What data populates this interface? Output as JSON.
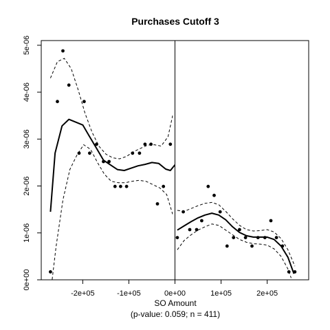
{
  "chart_data": {
    "type": "scatter",
    "title": "Purchases Cutoff 3",
    "xlabel": "SO Amount",
    "subtitle": "(p-value: 0.059; n = 411)",
    "ylabel": "",
    "xlim": [
      -290000,
      290000
    ],
    "ylim": [
      0,
      5.1e-06
    ],
    "cutoff": 0,
    "x_ticks": [
      {
        "value": -200000,
        "label": "-2e+05"
      },
      {
        "value": -100000,
        "label": "-1e+05"
      },
      {
        "value": 0,
        "label": "0e+00"
      },
      {
        "value": 100000,
        "label": "1e+05"
      },
      {
        "value": 200000,
        "label": "2e+05"
      }
    ],
    "y_ticks": [
      {
        "value": 0,
        "label": "0e+00"
      },
      {
        "value": 1e-06,
        "label": "1e-06"
      },
      {
        "value": 2e-06,
        "label": "2e-06"
      },
      {
        "value": 3e-06,
        "label": "3e-06"
      },
      {
        "value": 4e-06,
        "label": "4e-06"
      },
      {
        "value": 5e-06,
        "label": "5e-06"
      }
    ],
    "points": [
      {
        "x": -270000,
        "y": 1.7e-07
      },
      {
        "x": -255000,
        "y": 3.8e-06
      },
      {
        "x": -243000,
        "y": 4.88e-06
      },
      {
        "x": -230000,
        "y": 4.15e-06
      },
      {
        "x": -208000,
        "y": 2.7e-06
      },
      {
        "x": -197000,
        "y": 3.8e-06
      },
      {
        "x": -185000,
        "y": 2.7e-06
      },
      {
        "x": -170000,
        "y": 2.89e-06
      },
      {
        "x": -155000,
        "y": 2.52e-06
      },
      {
        "x": -143000,
        "y": 2.52e-06
      },
      {
        "x": -130000,
        "y": 1.99e-06
      },
      {
        "x": -118000,
        "y": 1.99e-06
      },
      {
        "x": -105000,
        "y": 1.99e-06
      },
      {
        "x": -92000,
        "y": 2.7e-06
      },
      {
        "x": -77000,
        "y": 2.7e-06
      },
      {
        "x": -65000,
        "y": 2.89e-06
      },
      {
        "x": -52000,
        "y": 2.89e-06
      },
      {
        "x": -38000,
        "y": 1.62e-06
      },
      {
        "x": -25000,
        "y": 1.99e-06
      },
      {
        "x": -10000,
        "y": 2.89e-06
      },
      {
        "x": 5000,
        "y": 9e-07
      },
      {
        "x": 18000,
        "y": 1.45e-06
      },
      {
        "x": 32000,
        "y": 1.07e-06
      },
      {
        "x": 47000,
        "y": 1.07e-06
      },
      {
        "x": 58000,
        "y": 1.26e-06
      },
      {
        "x": 72000,
        "y": 1.99e-06
      },
      {
        "x": 85000,
        "y": 1.8e-06
      },
      {
        "x": 98000,
        "y": 1.45e-06
      },
      {
        "x": 113000,
        "y": 7.2e-07
      },
      {
        "x": 127000,
        "y": 9e-07
      },
      {
        "x": 140000,
        "y": 1.07e-06
      },
      {
        "x": 153000,
        "y": 9e-07
      },
      {
        "x": 167000,
        "y": 7.2e-07
      },
      {
        "x": 180000,
        "y": 9e-07
      },
      {
        "x": 195000,
        "y": 9e-07
      },
      {
        "x": 208000,
        "y": 1.26e-06
      },
      {
        "x": 220000,
        "y": 9e-07
      },
      {
        "x": 233000,
        "y": 7.2e-07
      },
      {
        "x": 247000,
        "y": 1.7e-07
      },
      {
        "x": 260000,
        "y": 1.7e-07
      }
    ],
    "series": [
      {
        "style": "solid",
        "segments": [
          [
            [
              -270000,
              1.45e-06
            ],
            [
              -260000,
              2.7e-06
            ],
            [
              -245000,
              3.28e-06
            ],
            [
              -230000,
              3.42e-06
            ],
            [
              -215000,
              3.36e-06
            ],
            [
              -200000,
              3.3e-06
            ],
            [
              -185000,
              3.05e-06
            ],
            [
              -170000,
              2.8e-06
            ],
            [
              -155000,
              2.55e-06
            ],
            [
              -140000,
              2.45e-06
            ],
            [
              -125000,
              2.35e-06
            ],
            [
              -110000,
              2.33e-06
            ],
            [
              -95000,
              2.38e-06
            ],
            [
              -80000,
              2.43e-06
            ],
            [
              -65000,
              2.46e-06
            ],
            [
              -50000,
              2.5e-06
            ],
            [
              -35000,
              2.48e-06
            ],
            [
              -20000,
              2.36e-06
            ],
            [
              -10000,
              2.33e-06
            ],
            [
              0,
              2.45e-06
            ]
          ],
          [
            [
              5000,
              1.06e-06
            ],
            [
              20000,
              1.15e-06
            ],
            [
              35000,
              1.24e-06
            ],
            [
              50000,
              1.32e-06
            ],
            [
              65000,
              1.38e-06
            ],
            [
              80000,
              1.42e-06
            ],
            [
              95000,
              1.38e-06
            ],
            [
              110000,
              1.28e-06
            ],
            [
              125000,
              1.13e-06
            ],
            [
              140000,
              1.01e-06
            ],
            [
              155000,
              9.4e-07
            ],
            [
              170000,
              9.1e-07
            ],
            [
              185000,
              9.1e-07
            ],
            [
              200000,
              9.1e-07
            ],
            [
              215000,
              8.6e-07
            ],
            [
              230000,
              7.2e-07
            ],
            [
              245000,
              4.8e-07
            ],
            [
              258000,
              1.3e-07
            ]
          ]
        ]
      },
      {
        "style": "dashed",
        "segments": [
          [
            [
              -270000,
              4.3e-06
            ],
            [
              -255000,
              4.65e-06
            ],
            [
              -240000,
              4.72e-06
            ],
            [
              -225000,
              4.5e-06
            ],
            [
              -210000,
              4.05e-06
            ],
            [
              -195000,
              3.55e-06
            ],
            [
              -180000,
              3.15e-06
            ],
            [
              -165000,
              2.85e-06
            ],
            [
              -150000,
              2.68e-06
            ],
            [
              -135000,
              2.6e-06
            ],
            [
              -120000,
              2.58e-06
            ],
            [
              -105000,
              2.63e-06
            ],
            [
              -90000,
              2.73e-06
            ],
            [
              -75000,
              2.8e-06
            ],
            [
              -60000,
              2.87e-06
            ],
            [
              -45000,
              2.88e-06
            ],
            [
              -30000,
              2.85e-06
            ],
            [
              -15000,
              3.05e-06
            ],
            [
              -5000,
              3.5e-06
            ]
          ],
          [
            [
              -270000,
              -3e-07
            ],
            [
              -258000,
              7e-07
            ],
            [
              -243000,
              1.7e-06
            ],
            [
              -228000,
              2.35e-06
            ],
            [
              -213000,
              2.65e-06
            ],
            [
              -198000,
              2.88e-06
            ],
            [
              -183000,
              2.78e-06
            ],
            [
              -168000,
              2.5e-06
            ],
            [
              -153000,
              2.25e-06
            ],
            [
              -138000,
              2.1e-06
            ],
            [
              -123000,
              2.07e-06
            ],
            [
              -108000,
              2.07e-06
            ],
            [
              -93000,
              2.1e-06
            ],
            [
              -78000,
              2.12e-06
            ],
            [
              -63000,
              2.1e-06
            ],
            [
              -48000,
              2.03e-06
            ],
            [
              -33000,
              1.96e-06
            ],
            [
              -18000,
              1.82e-06
            ],
            [
              -5000,
              1.4e-06
            ]
          ],
          [
            [
              5000,
              1.48e-06
            ],
            [
              20000,
              1.46e-06
            ],
            [
              35000,
              1.52e-06
            ],
            [
              50000,
              1.58e-06
            ],
            [
              65000,
              1.63e-06
            ],
            [
              80000,
              1.65e-06
            ],
            [
              95000,
              1.6e-06
            ],
            [
              110000,
              1.46e-06
            ],
            [
              125000,
              1.3e-06
            ],
            [
              140000,
              1.16e-06
            ],
            [
              155000,
              1.07e-06
            ],
            [
              170000,
              1.04e-06
            ],
            [
              185000,
              1.05e-06
            ],
            [
              200000,
              1.07e-06
            ],
            [
              215000,
              1.02e-06
            ],
            [
              230000,
              8.8e-07
            ],
            [
              245000,
              6.4e-07
            ],
            [
              260000,
              2.9e-07
            ]
          ],
          [
            [
              5000,
              6.4e-07
            ],
            [
              20000,
              8.4e-07
            ],
            [
              35000,
              9.6e-07
            ],
            [
              50000,
              1.06e-06
            ],
            [
              65000,
              1.13e-06
            ],
            [
              80000,
              1.19e-06
            ],
            [
              95000,
              1.16e-06
            ],
            [
              110000,
              1.06e-06
            ],
            [
              125000,
              9.6e-07
            ],
            [
              140000,
              8.6e-07
            ],
            [
              155000,
              8e-07
            ],
            [
              170000,
              7.7e-07
            ],
            [
              185000,
              7.6e-07
            ],
            [
              200000,
              7.4e-07
            ],
            [
              215000,
              6.6e-07
            ],
            [
              230000,
              5e-07
            ],
            [
              245000,
              2.3e-07
            ],
            [
              252000,
              4e-08
            ]
          ]
        ]
      }
    ]
  }
}
